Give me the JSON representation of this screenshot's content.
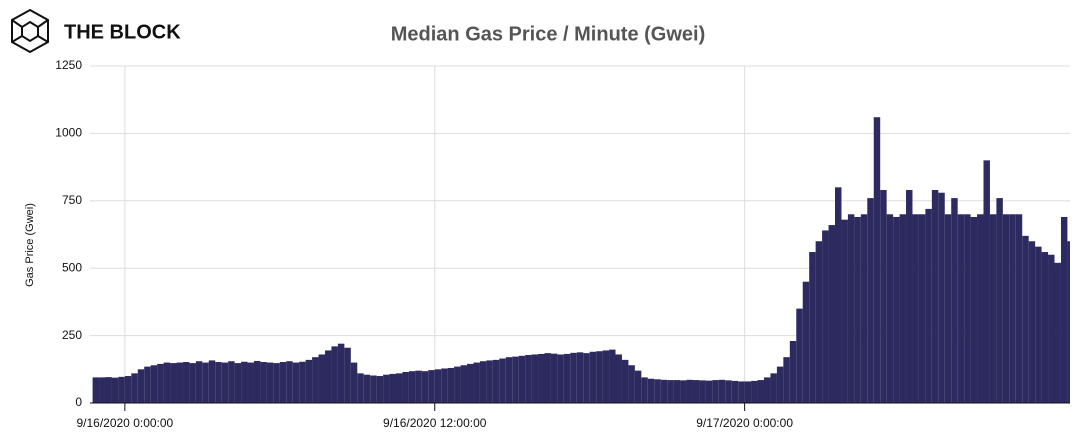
{
  "brand": "THE BLOCK",
  "chart_data": {
    "type": "bar",
    "title": "Median Gas Price / Minute (Gwei)",
    "y_label": "Gas Price (Gwei)",
    "color": "#2d2a5f",
    "grid": true,
    "xlim": [
      -1.35,
      36.6
    ],
    "xticks": [
      {
        "value": 0,
        "label": "9/16/2020 0:00:00"
      },
      {
        "value": 12,
        "label": "9/16/2020 12:00:00"
      },
      {
        "value": 24,
        "label": "9/17/2020 0:00:00"
      }
    ],
    "ylim": [
      0,
      1250
    ],
    "yticks": [
      0,
      250,
      500,
      750,
      1000,
      1250
    ],
    "x": [
      -1.25,
      -1,
      -0.75,
      -0.5,
      -0.25,
      0,
      0.25,
      0.5,
      0.75,
      1,
      1.25,
      1.5,
      1.75,
      2,
      2.25,
      2.5,
      2.75,
      3,
      3.25,
      3.5,
      3.75,
      4,
      4.25,
      4.5,
      4.75,
      5,
      5.25,
      5.5,
      5.75,
      6,
      6.25,
      6.5,
      6.75,
      7,
      7.25,
      7.5,
      7.75,
      8,
      8.25,
      8.5,
      8.75,
      9,
      9.25,
      9.5,
      9.75,
      10,
      10.25,
      10.5,
      10.75,
      11,
      11.25,
      11.5,
      11.75,
      12,
      12.25,
      12.5,
      12.75,
      13,
      13.25,
      13.5,
      13.75,
      14,
      14.25,
      14.5,
      14.75,
      15,
      15.25,
      15.5,
      15.75,
      16,
      16.25,
      16.5,
      16.75,
      17,
      17.25,
      17.5,
      17.75,
      18,
      18.25,
      18.5,
      18.75,
      19,
      19.25,
      19.5,
      19.75,
      20,
      20.25,
      20.5,
      20.75,
      21,
      21.25,
      21.5,
      21.75,
      22,
      22.25,
      22.5,
      22.75,
      23,
      23.25,
      23.5,
      23.75,
      24,
      24.25,
      24.5,
      24.75,
      25,
      25.25,
      25.5,
      25.75,
      26,
      26.25,
      26.5,
      26.75,
      27,
      27.25,
      27.5,
      27.75,
      28,
      28.25,
      28.5,
      28.75,
      29,
      29.25,
      29.5,
      29.75,
      30,
      30.25,
      30.5,
      30.75,
      31,
      31.25,
      31.5,
      31.75,
      32,
      32.25,
      32.5,
      32.75,
      33,
      33.25,
      33.5,
      33.75,
      34,
      34.25,
      34.5,
      34.75,
      35,
      35.25,
      35.5,
      35.75,
      36,
      36.25,
      36.5
    ],
    "values": [
      95,
      95,
      96,
      94,
      97,
      100,
      110,
      125,
      135,
      140,
      145,
      150,
      148,
      150,
      152,
      148,
      155,
      150,
      158,
      152,
      150,
      155,
      148,
      153,
      150,
      156,
      152,
      150,
      148,
      152,
      155,
      150,
      153,
      160,
      170,
      180,
      195,
      210,
      220,
      205,
      150,
      110,
      105,
      102,
      100,
      105,
      108,
      110,
      115,
      118,
      120,
      118,
      122,
      125,
      128,
      130,
      135,
      140,
      145,
      150,
      155,
      158,
      160,
      165,
      170,
      172,
      175,
      178,
      180,
      182,
      185,
      183,
      180,
      182,
      186,
      188,
      185,
      190,
      192,
      195,
      198,
      180,
      160,
      140,
      120,
      95,
      90,
      88,
      86,
      85,
      85,
      84,
      86,
      85,
      84,
      83,
      85,
      86,
      84,
      82,
      80,
      80,
      82,
      85,
      95,
      110,
      135,
      170,
      230,
      350,
      450,
      560,
      600,
      640,
      660,
      800,
      680,
      700,
      690,
      700,
      760,
      1060,
      790,
      700,
      690,
      700,
      790,
      700,
      700,
      720,
      790,
      780,
      700,
      760,
      700,
      700,
      690,
      700,
      900,
      700,
      760,
      700,
      700,
      700,
      620,
      600,
      580,
      560,
      550,
      520,
      690,
      600
    ]
  }
}
